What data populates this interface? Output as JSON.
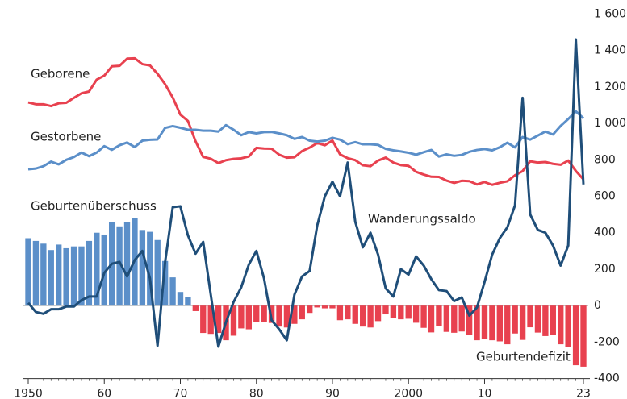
{
  "chart_data": {
    "type": "bar",
    "x": [
      1950,
      1951,
      1952,
      1953,
      1954,
      1955,
      1956,
      1957,
      1958,
      1959,
      1960,
      1961,
      1962,
      1963,
      1964,
      1965,
      1966,
      1967,
      1968,
      1969,
      1970,
      1971,
      1972,
      1973,
      1974,
      1975,
      1976,
      1977,
      1978,
      1979,
      1980,
      1981,
      1982,
      1983,
      1984,
      1985,
      1986,
      1987,
      1988,
      1989,
      1990,
      1991,
      1992,
      1993,
      1994,
      1995,
      1996,
      1997,
      1998,
      1999,
      2000,
      2001,
      2002,
      2003,
      2004,
      2005,
      2006,
      2007,
      2008,
      2009,
      2010,
      2011,
      2012,
      2013,
      2014,
      2015,
      2016,
      2017,
      2018,
      2019,
      2020,
      2021,
      2022,
      2023
    ],
    "series": [
      {
        "name": "Geburtenüberschuss",
        "type": "bar",
        "color": "#5b8fc9",
        "negative_color": "#e8414f",
        "values": [
          370,
          355,
          340,
          305,
          335,
          315,
          325,
          325,
          355,
          400,
          390,
          460,
          435,
          460,
          480,
          415,
          405,
          360,
          245,
          155,
          75,
          48,
          -30,
          -150,
          -155,
          -150,
          -190,
          -165,
          -125,
          -130,
          -90,
          -90,
          -95,
          -115,
          -120,
          -100,
          -75,
          -40,
          -10,
          -15,
          -15,
          -80,
          -75,
          -100,
          -115,
          -120,
          -85,
          -48,
          -67,
          -75,
          -72,
          -94,
          -122,
          -147,
          -113,
          -144,
          -149,
          -142,
          -162,
          -190,
          -181,
          -190,
          -196,
          -212,
          -153,
          -188,
          -119,
          -148,
          -167,
          -161,
          -212,
          -228,
          -327,
          -335
        ]
      },
      {
        "name": "Geborene",
        "type": "line",
        "color": "#e8414f",
        "values": [
          1115,
          1105,
          1105,
          1095,
          1110,
          1113,
          1140,
          1165,
          1175,
          1240,
          1262,
          1313,
          1316,
          1355,
          1357,
          1325,
          1318,
          1272,
          1215,
          1142,
          1048,
          1013,
          902,
          816,
          806,
          782,
          798,
          805,
          808,
          818,
          866,
          862,
          861,
          828,
          812,
          814,
          848,
          867,
          892,
          880,
          906,
          830,
          809,
          798,
          770,
          765,
          796,
          812,
          785,
          771,
          767,
          734,
          719,
          707,
          706,
          686,
          673,
          685,
          683,
          665,
          678,
          663,
          674,
          682,
          715,
          738,
          792,
          785,
          788,
          778,
          773,
          796,
          739,
          693
        ]
      },
      {
        "name": "Gestorbene",
        "type": "line",
        "color": "#5b8fc9",
        "values": [
          748,
          752,
          765,
          790,
          775,
          800,
          815,
          840,
          820,
          840,
          875,
          855,
          880,
          895,
          870,
          905,
          910,
          912,
          975,
          985,
          976,
          965,
          965,
          960,
          960,
          955,
          990,
          965,
          935,
          952,
          945,
          952,
          953,
          945,
          935,
          915,
          925,
          905,
          900,
          905,
          921,
          911,
          886,
          897,
          885,
          885,
          882,
          860,
          852,
          846,
          839,
          828,
          842,
          854,
          818,
          830,
          822,
          827,
          844,
          854,
          859,
          852,
          869,
          894,
          868,
          925,
          911,
          933,
          955,
          939,
          986,
          1024,
          1066,
          1028
        ]
      },
      {
        "name": "Wanderungssaldo",
        "type": "line",
        "color": "#1f4e79",
        "values": [
          15,
          -35,
          -45,
          -20,
          -20,
          -5,
          -5,
          30,
          50,
          50,
          180,
          230,
          240,
          160,
          250,
          300,
          150,
          -220,
          240,
          540,
          545,
          385,
          285,
          350,
          60,
          -225,
          -90,
          20,
          100,
          225,
          300,
          150,
          -80,
          -130,
          -190,
          60,
          160,
          190,
          440,
          600,
          680,
          600,
          785,
          460,
          320,
          400,
          280,
          95,
          50,
          200,
          170,
          270,
          220,
          145,
          85,
          80,
          25,
          45,
          -55,
          -10,
          130,
          280,
          370,
          430,
          550,
          1140,
          500,
          415,
          400,
          330,
          220,
          330,
          1460,
          665
        ]
      }
    ],
    "annotations": [
      "Geburtendefizit"
    ],
    "xlim": [
      1950,
      2023
    ],
    "xticks": [
      {
        "value": 1950,
        "label": "1950"
      },
      {
        "value": 1960,
        "label": "60"
      },
      {
        "value": 1970,
        "label": "70"
      },
      {
        "value": 1980,
        "label": "80"
      },
      {
        "value": 1990,
        "label": "90"
      },
      {
        "value": 2000,
        "label": "2000"
      },
      {
        "value": 2010,
        "label": "10"
      },
      {
        "value": 2023,
        "label": "23"
      }
    ],
    "ylim": [
      -400,
      1600
    ],
    "yticks": [
      -400,
      -200,
      0,
      200,
      400,
      600,
      800,
      {
        "value": 1000,
        "label": "1 000"
      },
      {
        "value": 1200,
        "label": "1 200"
      },
      {
        "value": 1400,
        "label": "1 400"
      },
      {
        "value": 1600,
        "label": "1 600"
      }
    ]
  }
}
